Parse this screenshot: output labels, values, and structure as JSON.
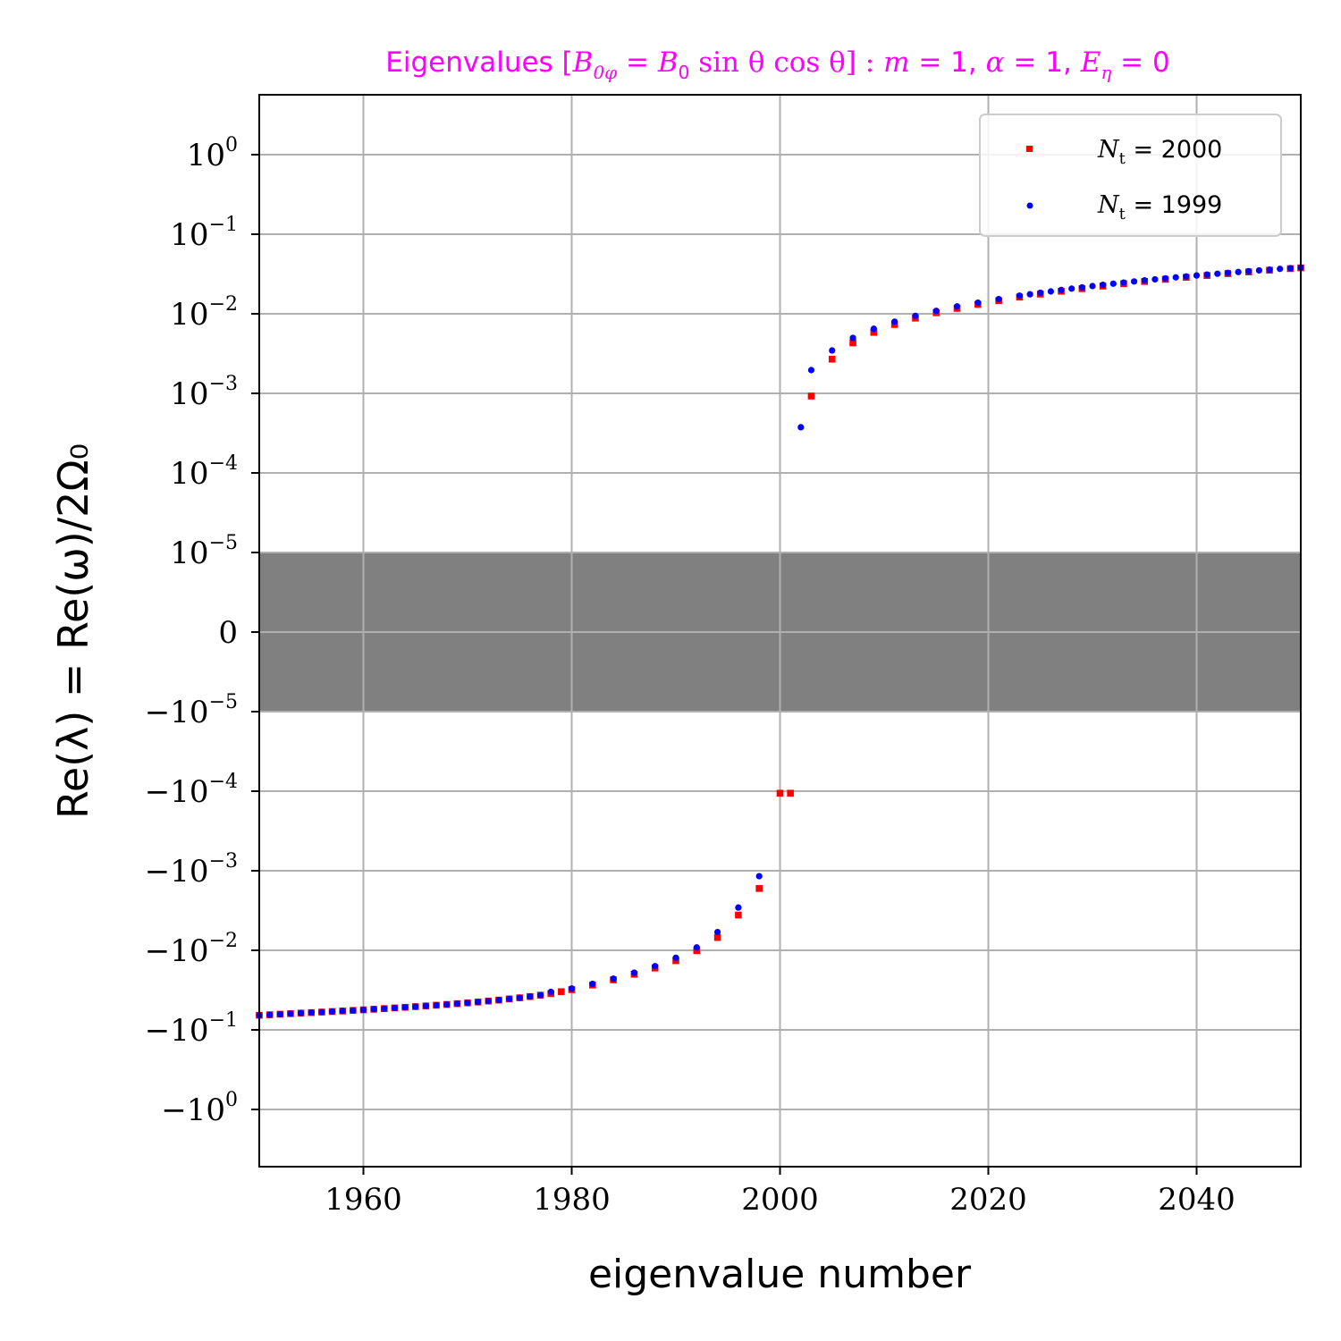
{
  "chart_data": {
    "type": "scatter",
    "title": "Eigenvalues [B₀ᵩ = B₀ sin θ cos θ] : m = 1, α = 1, Eη = 0",
    "xlabel": "eigenvalue number",
    "ylabel": "Re(λ) = Re(ω)/2Ω₀",
    "yscale": "symlog",
    "linthresh": 1e-05,
    "xlim": [
      1950,
      2050
    ],
    "ylim": [
      -3.5,
      3.5
    ],
    "grid": true,
    "legend_position": "top-right",
    "shaded_band": {
      "from": -1e-05,
      "to": 1e-05,
      "color": "#808080"
    },
    "x_ticks": [
      {
        "value": 1960,
        "label": "1960"
      },
      {
        "value": 1980,
        "label": "1980"
      },
      {
        "value": 2000,
        "label": "2000"
      },
      {
        "value": 2020,
        "label": "2020"
      },
      {
        "value": 2040,
        "label": "2040"
      }
    ],
    "y_ticks": [
      {
        "value": 1,
        "label": "10",
        "exp": "0"
      },
      {
        "value": 0.1,
        "label": "10",
        "exp": "−1"
      },
      {
        "value": 0.01,
        "label": "10",
        "exp": "−2"
      },
      {
        "value": 0.001,
        "label": "10",
        "exp": "−3"
      },
      {
        "value": 0.0001,
        "label": "10",
        "exp": "−4"
      },
      {
        "value": 1e-05,
        "label": "10",
        "exp": "−5"
      },
      {
        "value": 0,
        "label": "0",
        "exp": ""
      },
      {
        "value": -1e-05,
        "label": "−10",
        "exp": "−5"
      },
      {
        "value": -0.0001,
        "label": "−10",
        "exp": "−4"
      },
      {
        "value": -0.001,
        "label": "−10",
        "exp": "−3"
      },
      {
        "value": -0.01,
        "label": "−10",
        "exp": "−2"
      },
      {
        "value": -0.1,
        "label": "−10",
        "exp": "−1"
      },
      {
        "value": -1,
        "label": "−10",
        "exp": "0"
      }
    ],
    "series": [
      {
        "name": "Nₜ = 2000",
        "color": "#ff0000",
        "marker": "square",
        "points": [
          [
            1950,
            -0.0655
          ],
          [
            1951,
            -0.0645
          ],
          [
            1952,
            -0.0635
          ],
          [
            1953,
            -0.0625
          ],
          [
            1954,
            -0.0615
          ],
          [
            1955,
            -0.0606
          ],
          [
            1956,
            -0.0597
          ],
          [
            1957,
            -0.0588
          ],
          [
            1958,
            -0.0579
          ],
          [
            1959,
            -0.057
          ],
          [
            1960,
            -0.056
          ],
          [
            1961,
            -0.055
          ],
          [
            1962,
            -0.054
          ],
          [
            1963,
            -0.053
          ],
          [
            1964,
            -0.052
          ],
          [
            1965,
            -0.051
          ],
          [
            1966,
            -0.05
          ],
          [
            1967,
            -0.049
          ],
          [
            1968,
            -0.0479
          ],
          [
            1969,
            -0.0468
          ],
          [
            1970,
            -0.0457
          ],
          [
            1971,
            -0.0446
          ],
          [
            1972,
            -0.0434
          ],
          [
            1973,
            -0.0422
          ],
          [
            1974,
            -0.0408
          ],
          [
            1975,
            -0.0395
          ],
          [
            1976,
            -0.0381
          ],
          [
            1977,
            -0.0366
          ],
          [
            1978,
            -0.035
          ],
          [
            1979,
            -0.0331
          ],
          [
            1980,
            -0.0312
          ],
          [
            1982,
            -0.0273
          ],
          [
            1984,
            -0.0235
          ],
          [
            1986,
            -0.02
          ],
          [
            1988,
            -0.0167
          ],
          [
            1990,
            -0.0135
          ],
          [
            1992,
            -0.0101
          ],
          [
            1994,
            -0.0069
          ],
          [
            1996,
            -0.0036
          ],
          [
            1998,
            -0.00167
          ],
          [
            2000,
            -0.000106
          ],
          [
            2001,
            -0.000106
          ],
          [
            2003,
            0.000925
          ],
          [
            2005,
            0.00269
          ],
          [
            2007,
            0.00431
          ],
          [
            2009,
            0.00584
          ],
          [
            2011,
            0.00734
          ],
          [
            2013,
            0.00882
          ],
          [
            2015,
            0.0103
          ],
          [
            2017,
            0.0117
          ],
          [
            2019,
            0.0131
          ],
          [
            2021,
            0.0146
          ],
          [
            2023,
            0.0162
          ],
          [
            2025,
            0.0177
          ],
          [
            2027,
            0.0192
          ],
          [
            2029,
            0.0207
          ],
          [
            2031,
            0.0223
          ],
          [
            2033,
            0.0239
          ],
          [
            2035,
            0.0255
          ],
          [
            2037,
            0.0271
          ],
          [
            2039,
            0.0287
          ],
          [
            2041,
            0.0303
          ],
          [
            2043,
            0.032
          ],
          [
            2045,
            0.0336
          ],
          [
            2047,
            0.0353
          ],
          [
            2049,
            0.037
          ],
          [
            2050,
            0.0378
          ]
        ]
      },
      {
        "name": "Nₜ = 1999",
        "color": "#0000ff",
        "marker": "circle",
        "points": [
          [
            1950,
            -0.0655
          ],
          [
            1951,
            -0.0645
          ],
          [
            1952,
            -0.0635
          ],
          [
            1953,
            -0.0625
          ],
          [
            1954,
            -0.0615
          ],
          [
            1955,
            -0.0606
          ],
          [
            1956,
            -0.0597
          ],
          [
            1957,
            -0.0588
          ],
          [
            1958,
            -0.0579
          ],
          [
            1959,
            -0.057
          ],
          [
            1960,
            -0.056
          ],
          [
            1961,
            -0.055
          ],
          [
            1962,
            -0.054
          ],
          [
            1963,
            -0.053
          ],
          [
            1964,
            -0.052
          ],
          [
            1965,
            -0.051
          ],
          [
            1966,
            -0.05
          ],
          [
            1967,
            -0.049
          ],
          [
            1968,
            -0.0479
          ],
          [
            1969,
            -0.0468
          ],
          [
            1970,
            -0.0457
          ],
          [
            1971,
            -0.0446
          ],
          [
            1972,
            -0.0434
          ],
          [
            1973,
            -0.0422
          ],
          [
            1974,
            -0.0408
          ],
          [
            1975,
            -0.0395
          ],
          [
            1976,
            -0.0381
          ],
          [
            1977,
            -0.0366
          ],
          [
            1978,
            -0.0333
          ],
          [
            1980,
            -0.0302
          ],
          [
            1982,
            -0.0264
          ],
          [
            1984,
            -0.0227
          ],
          [
            1986,
            -0.0191
          ],
          [
            1988,
            -0.0158
          ],
          [
            1990,
            -0.0124
          ],
          [
            1992,
            -0.0092
          ],
          [
            1994,
            -0.0059
          ],
          [
            1996,
            -0.0029
          ],
          [
            1998,
            -0.00117
          ],
          [
            2002,
            0.000375
          ],
          [
            2003,
            0.00196
          ],
          [
            2005,
            0.00346
          ],
          [
            2007,
            0.00498
          ],
          [
            2009,
            0.00648
          ],
          [
            2011,
            0.00796
          ],
          [
            2013,
            0.00942
          ],
          [
            2015,
            0.0109
          ],
          [
            2017,
            0.0124
          ],
          [
            2019,
            0.0138
          ],
          [
            2021,
            0.0153
          ],
          [
            2023,
            0.0169
          ],
          [
            2024,
            0.0176
          ],
          [
            2025,
            0.0184
          ],
          [
            2026,
            0.0191
          ],
          [
            2027,
            0.0199
          ],
          [
            2028,
            0.0207
          ],
          [
            2029,
            0.0215
          ],
          [
            2030,
            0.0223
          ],
          [
            2031,
            0.0231
          ],
          [
            2032,
            0.0239
          ],
          [
            2033,
            0.0247
          ],
          [
            2034,
            0.0255
          ],
          [
            2035,
            0.0263
          ],
          [
            2036,
            0.0271
          ],
          [
            2037,
            0.0279
          ],
          [
            2038,
            0.0287
          ],
          [
            2039,
            0.0295
          ],
          [
            2040,
            0.0303
          ],
          [
            2041,
            0.0311
          ],
          [
            2042,
            0.0319
          ],
          [
            2043,
            0.0327
          ],
          [
            2044,
            0.0335
          ],
          [
            2045,
            0.0343
          ],
          [
            2046,
            0.0351
          ],
          [
            2047,
            0.0359
          ],
          [
            2048,
            0.0367
          ],
          [
            2049,
            0.0374
          ],
          [
            2050,
            0.0381
          ]
        ]
      }
    ]
  },
  "labels": {
    "title_prefix": "Eigenvalues [",
    "title_b": "B",
    "title_b_sub": "0φ",
    "title_eq": " = ",
    "title_b0": "B",
    "title_b0_sub": "0",
    "title_func": " sin θ cos θ] : ",
    "title_m": "m",
    "title_m_val": " = 1, ",
    "title_alpha": "α",
    "title_alpha_val": " = 1, ",
    "title_E": "E",
    "title_E_sub": "η",
    "title_E_val": " = 0",
    "xlabel": "eigenvalue number",
    "ylabel": "Re(λ) = Re(ω)/2Ω₀",
    "legend_1_N": "N",
    "legend_1_sub": "t",
    "legend_1_val": " = 2000",
    "legend_2_N": "N",
    "legend_2_sub": "t",
    "legend_2_val": " = 1999"
  }
}
